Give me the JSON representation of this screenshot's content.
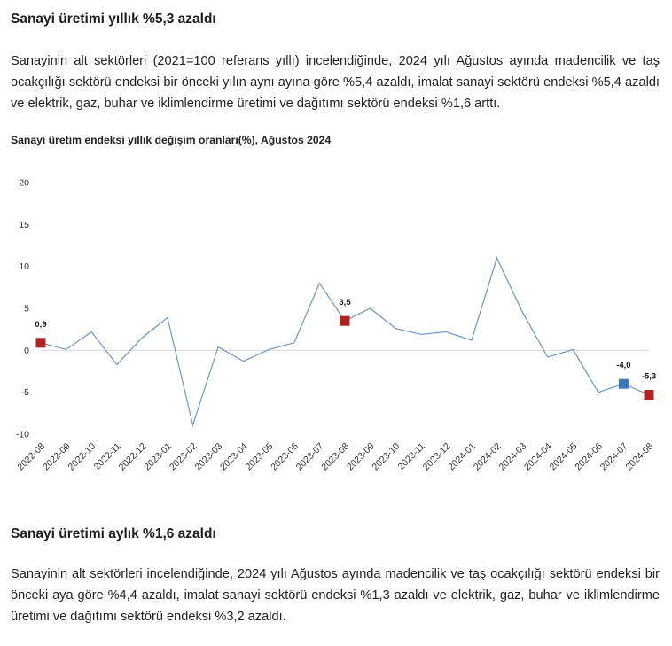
{
  "section1": {
    "title": "Sanayi üretimi yıllık %5,3 azaldı",
    "body": "Sanayinin alt sektörleri (2021=100 referans yıllı) incelendiğinde, 2024 yılı Ağustos ayında madencilik ve taş ocakçılığı sektörü endeksi bir önceki yılın aynı ayına göre %5,4 azaldı, imalat sanayi sektörü endeksi %5,4 azaldı ve elektrik, gaz, buhar ve iklimlendirme üretimi ve dağıtımı sektörü endeksi %1,6 arttı."
  },
  "chart_title": "Sanayi üretim endeksi yıllık değişim oranları(%), Ağustos 2024",
  "chart_data": {
    "type": "line",
    "title": "Sanayi üretim endeksi yıllık değişim oranları(%), Ağustos 2024",
    "xlabel": "",
    "ylabel": "",
    "ylim": [
      -10,
      20
    ],
    "yticks": [
      -10,
      -5,
      0,
      5,
      10,
      15,
      20
    ],
    "grid": false,
    "line_color": "#6a96c8",
    "categories": [
      "2022-08",
      "2022-09",
      "2022-10",
      "2022-11",
      "2022-12",
      "2023-01",
      "2023-02",
      "2023-03",
      "2023-04",
      "2023-05",
      "2023-06",
      "2023-07",
      "2023-08",
      "2023-09",
      "2023-10",
      "2023-11",
      "2023-12",
      "2024-01",
      "2024-02",
      "2024-03",
      "2024-04",
      "2024-05",
      "2024-06",
      "2024-07",
      "2024-08"
    ],
    "series": [
      {
        "values": [
          0.9,
          0.1,
          2.2,
          -1.7,
          1.5,
          3.9,
          -8.9,
          0.4,
          -1.3,
          0.1,
          0.9,
          8.0,
          3.5,
          5.0,
          2.6,
          1.9,
          2.2,
          1.2,
          11.0,
          4.6,
          -0.8,
          0.1,
          -5.0,
          -4.0,
          -5.3
        ]
      }
    ],
    "highlights": [
      {
        "category": "2022-08",
        "label": "0,9",
        "color": "#b22222"
      },
      {
        "category": "2023-08",
        "label": "3,5",
        "color": "#b22222"
      },
      {
        "category": "2024-07",
        "label": "-4,0",
        "color": "#3f78b8"
      },
      {
        "category": "2024-08",
        "label": "-5,3",
        "color": "#b22222"
      }
    ]
  },
  "section2": {
    "title": "Sanayi üretimi aylık %1,6 azaldı",
    "body": "Sanayinin alt sektörleri incelendiğinde, 2024 yılı Ağustos ayında madencilik ve taş ocakçılığı sektörü endeksi bir önceki aya göre %4,4 azaldı, imalat sanayi sektörü endeksi %1,3 azaldı ve elektrik, gaz, buhar ve iklimlendirme üretimi ve dağıtımı sektörü endeksi %3,2 azaldı."
  }
}
